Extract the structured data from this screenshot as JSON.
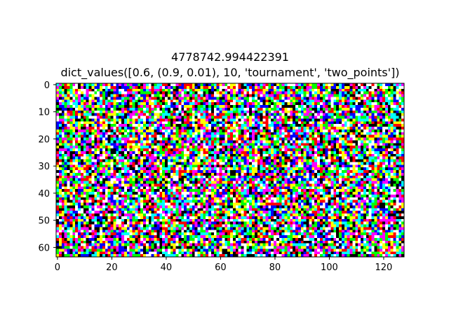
{
  "chart_data": {
    "type": "heatmap",
    "title_lines": [
      "4778742.994422391",
      "dict_values([0.6, (0.9, 0.01), 10, 'tournament', 'two_points'])"
    ],
    "image_description": "random RGB noise image rendered as pixels",
    "image_width": 128,
    "image_height": 64,
    "xlim": [
      -0.5,
      127.5
    ],
    "ylim": [
      63.5,
      -0.5
    ],
    "x_ticks": [
      0,
      20,
      40,
      60,
      80,
      100,
      120
    ],
    "y_ticks": [
      0,
      10,
      20,
      30,
      40,
      50,
      60
    ],
    "x_tick_labels": [
      "0",
      "20",
      "40",
      "60",
      "80",
      "100",
      "120"
    ],
    "y_tick_labels": [
      "0",
      "10",
      "20",
      "30",
      "40",
      "50",
      "60"
    ],
    "palette": [
      "#ff0000",
      "#00ff00",
      "#0000ff",
      "#ffff00",
      "#ff00ff",
      "#00ffff",
      "#000000",
      "#ffffff"
    ],
    "random_seed": 4778742,
    "grid": false
  }
}
